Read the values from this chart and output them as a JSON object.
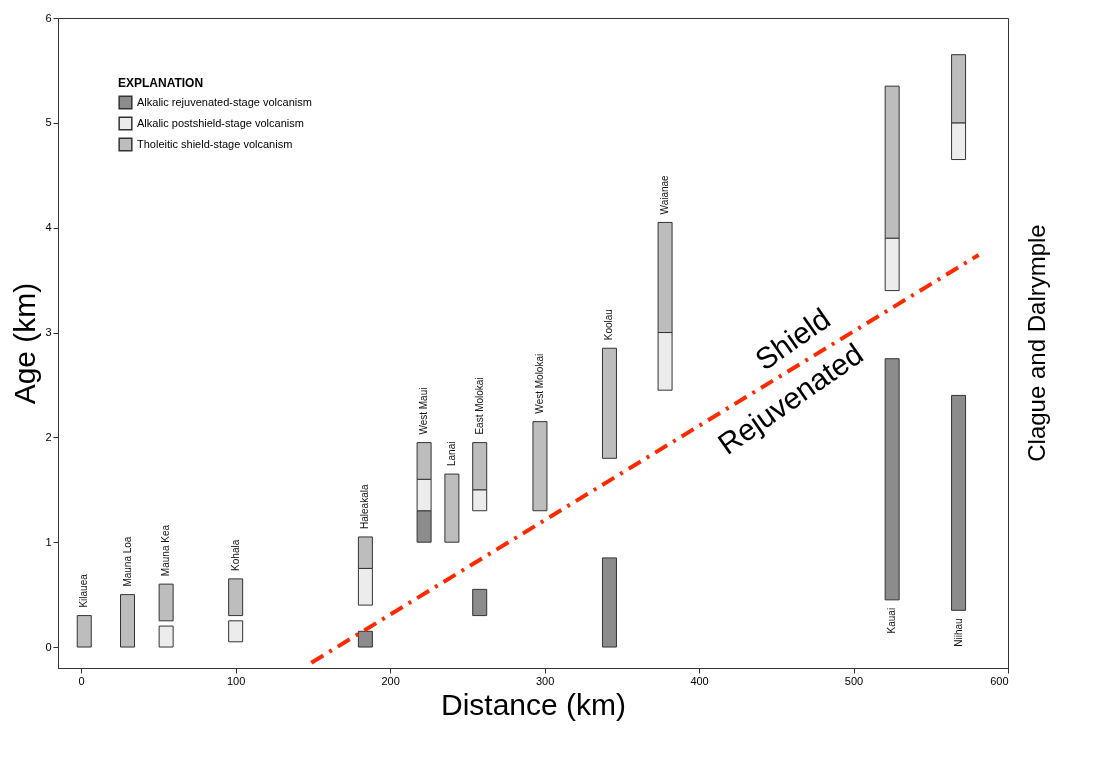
{
  "chart_data": {
    "type": "bar",
    "xlabel": "Distance (km)",
    "ylabel": "Age (km)",
    "legend_title": "EXPLANATION",
    "legend": "top left",
    "grid": false,
    "x": [
      2,
      30,
      55,
      100,
      184,
      222,
      240,
      258,
      297,
      342,
      378,
      525,
      568
    ],
    "xlim": [
      -15,
      600
    ],
    "xticks": [
      0,
      100,
      200,
      300,
      400,
      500,
      600
    ],
    "ylim": [
      -0.2,
      6
    ],
    "yticks": [
      0,
      1,
      2,
      3,
      4,
      5,
      6
    ],
    "series": [
      {
        "name": "Alkalic rejuvenated-stage volcanism",
        "color": "#8c8c8c",
        "base": [
          null,
          null,
          null,
          null,
          0,
          1.0,
          null,
          0.3,
          null,
          0,
          null,
          0.45,
          0.35
        ],
        "values": [
          null,
          null,
          null,
          null,
          0.15,
          0.3,
          null,
          0.25,
          null,
          0.85,
          null,
          2.3,
          2.05
        ]
      },
      {
        "name": "Alkalic postshield-stage volcanism",
        "color": "#ececec",
        "base": [
          null,
          null,
          0,
          0.05,
          0.4,
          1.3,
          null,
          1.3,
          null,
          null,
          2.45,
          3.4,
          4.65
        ],
        "values": [
          null,
          null,
          0.2,
          0.2,
          0.35,
          0.3,
          null,
          0.2,
          null,
          null,
          0.55,
          0.5,
          0.35
        ]
      },
      {
        "name": "Tholeitic shield-stage volcanism",
        "color": "#bdbdbd",
        "base": [
          0,
          0,
          0.25,
          0.3,
          0.75,
          1.6,
          1.0,
          1.5,
          1.3,
          1.8,
          3.0,
          3.9,
          5.0
        ],
        "values": [
          0.3,
          0.5,
          0.35,
          0.35,
          0.3,
          0.35,
          0.65,
          0.45,
          0.85,
          1.05,
          1.05,
          1.45,
          0.65
        ]
      },
      {
        "type": "line",
        "color": "#ff2a00",
        "line_style": "dashed",
        "x": [
          149,
          581
        ],
        "values": [
          -0.15,
          3.74
        ]
      }
    ],
    "annotations": [
      {
        "text": "Kilauea",
        "x": 2,
        "y": 0.3
      },
      {
        "text": "Mauna Loa",
        "x": 30,
        "y": 0.5
      },
      {
        "text": "Mauna Kea",
        "x": 55,
        "y": 0.6
      },
      {
        "text": "Kohala",
        "x": 100,
        "y": 0.65
      },
      {
        "text": "Haleakala",
        "x": 184,
        "y": 1.05
      },
      {
        "text": "West Maui",
        "x": 222,
        "y": 1.95
      },
      {
        "text": "Lanai",
        "x": 240,
        "y": 1.65
      },
      {
        "text": "East Molokai",
        "x": 258,
        "y": 1.95
      },
      {
        "text": "West Molokai",
        "x": 297,
        "y": 2.15
      },
      {
        "text": "Koolau",
        "x": 342,
        "y": 2.85
      },
      {
        "text": "Waianae",
        "x": 378,
        "y": 4.05
      },
      {
        "text": "Kauai",
        "x": 525,
        "y": 0.45
      },
      {
        "text": "Niihau",
        "x": 568,
        "y": 0.35
      },
      {
        "text": "Shield",
        "x": 470,
        "y": 2.74
      },
      {
        "text": "Rejuvenated",
        "x": 450,
        "y": 2.56
      },
      "Clague and Dalrymple"
    ]
  }
}
